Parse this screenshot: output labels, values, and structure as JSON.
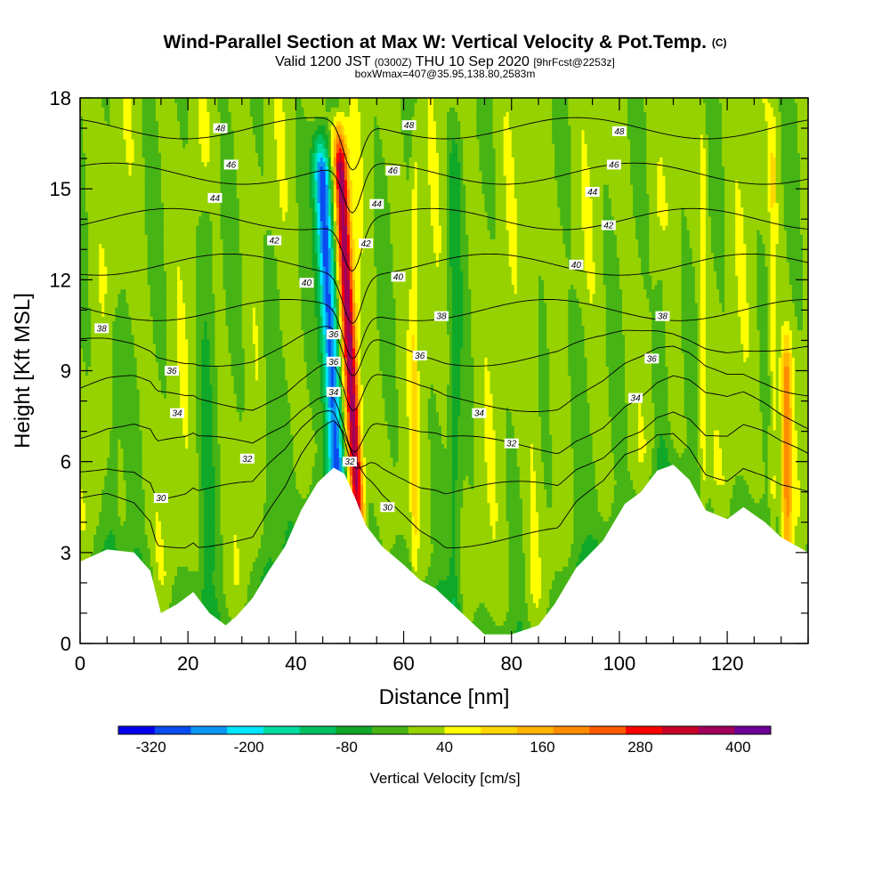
{
  "title": {
    "main": "Wind-Parallel Section at Max W: Vertical Velocity & Pot.Temp.",
    "copyright_tag": "(C)",
    "valid_prefix": "Valid 1200 JST",
    "valid_utc": "(0300Z)",
    "valid_date": "THU 10 Sep 2020",
    "forecast_tag": "[9hrFcst@2253z]",
    "box_info": "boxWmax=407@35.95,138.80,2583m"
  },
  "chart_data": {
    "type": "heatmap",
    "xlabel": "Distance [nm]",
    "ylabel": "Height [Kft MSL]",
    "xlim": [
      0,
      135
    ],
    "ylim": [
      0,
      18
    ],
    "x_ticks": [
      0,
      20,
      40,
      60,
      80,
      100,
      120
    ],
    "y_ticks": [
      0,
      3,
      6,
      9,
      12,
      15,
      18
    ],
    "colorbar": {
      "label": "Vertical Velocity [cm/s]",
      "tick_labels": [
        "-320",
        "-200",
        "-80",
        "40",
        "160",
        "280",
        "400"
      ],
      "tick_values": [
        -320,
        -200,
        -80,
        40,
        160,
        280,
        400
      ],
      "range": [
        -360,
        440
      ],
      "colors": [
        "#0000ee",
        "#0a4cf0",
        "#0a96f0",
        "#00e6ff",
        "#00dca0",
        "#00c060",
        "#10a828",
        "#46b414",
        "#96d200",
        "#ffff00",
        "#ffd700",
        "#ffb400",
        "#ff8c00",
        "#ff5a00",
        "#ff0000",
        "#c80028",
        "#a0005a",
        "#6e0096"
      ]
    },
    "background_w": 10,
    "terrain_height": [
      [
        0,
        2.7
      ],
      [
        5,
        3.1
      ],
      [
        10,
        3.0
      ],
      [
        13,
        2.4
      ],
      [
        15,
        1.0
      ],
      [
        18,
        1.3
      ],
      [
        21,
        1.7
      ],
      [
        24,
        1.0
      ],
      [
        27,
        0.6
      ],
      [
        29,
        0.9
      ],
      [
        32,
        1.5
      ],
      [
        35,
        2.4
      ],
      [
        38,
        3.2
      ],
      [
        41,
        4.4
      ],
      [
        44,
        5.3
      ],
      [
        47,
        5.8
      ],
      [
        49,
        5.6
      ],
      [
        51,
        4.8
      ],
      [
        53,
        3.9
      ],
      [
        56,
        3.2
      ],
      [
        60,
        2.6
      ],
      [
        63,
        2.1
      ],
      [
        66,
        1.8
      ],
      [
        69,
        1.3
      ],
      [
        72,
        0.8
      ],
      [
        75,
        0.3
      ],
      [
        80,
        0.3
      ],
      [
        85,
        0.6
      ],
      [
        88,
        1.3
      ],
      [
        92,
        2.5
      ],
      [
        97,
        3.4
      ],
      [
        101,
        4.6
      ],
      [
        104,
        5.0
      ],
      [
        107,
        5.7
      ],
      [
        110,
        5.9
      ],
      [
        113,
        5.4
      ],
      [
        116,
        4.4
      ],
      [
        120,
        4.1
      ],
      [
        123,
        4.5
      ],
      [
        127,
        4.0
      ],
      [
        130,
        3.5
      ],
      [
        135,
        3.0
      ]
    ],
    "updraft_features": [
      {
        "x_base": 51.0,
        "lean": -0.28,
        "half_width": 1.3,
        "amp": 390,
        "top": 17.8
      },
      {
        "x_base": 47.5,
        "lean": -0.28,
        "half_width": 1.6,
        "amp": -320,
        "top": 17.5
      },
      {
        "x_base": 62.0,
        "lean": 0.0,
        "half_width": 0.6,
        "amp": 60,
        "top": 18
      },
      {
        "x_base": 69.5,
        "lean": 0.0,
        "half_width": 1.2,
        "amp": -70,
        "top": 18
      },
      {
        "x_base": 131.0,
        "lean": 0.0,
        "half_width": 1.0,
        "amp": 170,
        "top": 11.0
      },
      {
        "x_base": 115.5,
        "lean": 0.0,
        "half_width": 0.7,
        "amp": 60,
        "top": 18
      },
      {
        "x_base": 128.5,
        "lean": 0.0,
        "half_width": 0.7,
        "amp": 70,
        "top": 18
      },
      {
        "x_base": 23.5,
        "lean": 0.0,
        "half_width": 1.6,
        "amp": -50,
        "top": 16
      },
      {
        "x_base": 35.0,
        "lean": 0.0,
        "half_width": 1.5,
        "amp": -50,
        "top": 14
      },
      {
        "x_base": 92.0,
        "lean": 0.0,
        "half_width": 2.0,
        "amp": -45,
        "top": 12
      },
      {
        "x_base": 108.0,
        "lean": 0.0,
        "half_width": 1.5,
        "amp": -45,
        "top": 14
      },
      {
        "x_base": 6.0,
        "lean": 0.0,
        "half_width": 1.5,
        "amp": -45,
        "top": 12
      },
      {
        "x_base": 84.0,
        "lean": 0.0,
        "half_width": 1.5,
        "amp": 30,
        "top": 18
      }
    ],
    "theta_contours": [
      30,
      32,
      34,
      36,
      38,
      40,
      42,
      44,
      46,
      48
    ],
    "theta_labels": [
      {
        "text": "48",
        "x": 26,
        "y": 17.0
      },
      {
        "text": "48",
        "x": 61,
        "y": 17.1
      },
      {
        "text": "48",
        "x": 100,
        "y": 16.9
      },
      {
        "text": "46",
        "x": 28,
        "y": 15.8
      },
      {
        "text": "46",
        "x": 58,
        "y": 15.6
      },
      {
        "text": "46",
        "x": 99,
        "y": 15.8
      },
      {
        "text": "44",
        "x": 25,
        "y": 14.7
      },
      {
        "text": "44",
        "x": 55,
        "y": 14.5
      },
      {
        "text": "44",
        "x": 95,
        "y": 14.9
      },
      {
        "text": "42",
        "x": 36,
        "y": 13.3
      },
      {
        "text": "42",
        "x": 53,
        "y": 13.2
      },
      {
        "text": "42",
        "x": 98,
        "y": 13.8
      },
      {
        "text": "40",
        "x": 42,
        "y": 11.9
      },
      {
        "text": "40",
        "x": 59,
        "y": 12.1
      },
      {
        "text": "40",
        "x": 92,
        "y": 12.5
      },
      {
        "text": "38",
        "x": 4,
        "y": 10.4
      },
      {
        "text": "38",
        "x": 67,
        "y": 10.8
      },
      {
        "text": "38",
        "x": 108,
        "y": 10.8
      },
      {
        "text": "36",
        "x": 47,
        "y": 10.2
      },
      {
        "text": "36",
        "x": 17,
        "y": 9.0
      },
      {
        "text": "36",
        "x": 47,
        "y": 9.3
      },
      {
        "text": "36",
        "x": 63,
        "y": 9.5
      },
      {
        "text": "36",
        "x": 106,
        "y": 9.4
      },
      {
        "text": "34",
        "x": 47,
        "y": 8.3
      },
      {
        "text": "34",
        "x": 18,
        "y": 7.6
      },
      {
        "text": "34",
        "x": 74,
        "y": 7.6
      },
      {
        "text": "34",
        "x": 103,
        "y": 8.1
      },
      {
        "text": "32",
        "x": 31,
        "y": 6.1
      },
      {
        "text": "32",
        "x": 50,
        "y": 6.0
      },
      {
        "text": "32",
        "x": 80,
        "y": 6.6
      },
      {
        "text": "30",
        "x": 15,
        "y": 4.8
      },
      {
        "text": "30",
        "x": 57,
        "y": 4.5
      }
    ]
  }
}
